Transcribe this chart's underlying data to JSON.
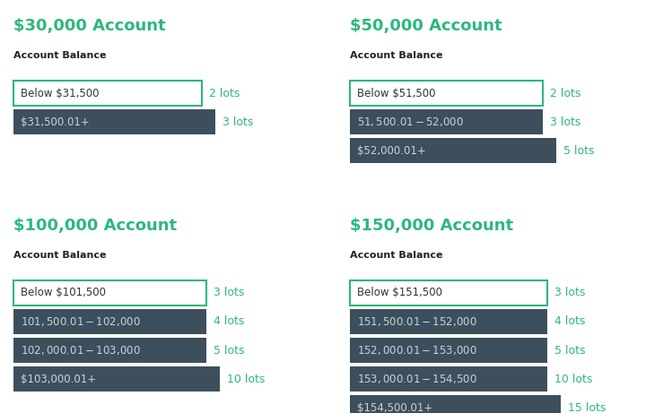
{
  "background_color": "#ffffff",
  "green_color": "#2db87d",
  "dark_box_color": "#3d4f5c",
  "light_box_border": "#2db87d",
  "panels": [
    {
      "title": "$30,000 Account",
      "col": 0,
      "row": 0,
      "rows": [
        {
          "label": "Below $31,500",
          "lots": "2 lots",
          "style": "light"
        },
        {
          "label": "$31,500.01+",
          "lots": "3 lots",
          "style": "dark"
        }
      ]
    },
    {
      "title": "$50,000 Account",
      "col": 1,
      "row": 0,
      "rows": [
        {
          "label": "Below $51,500",
          "lots": "2 lots",
          "style": "light"
        },
        {
          "label": "$51,500.01 - $52,000",
          "lots": "3 lots",
          "style": "dark"
        },
        {
          "label": "$52,000.01+",
          "lots": "5 lots",
          "style": "dark"
        }
      ]
    },
    {
      "title": "$100,000 Account",
      "col": 0,
      "row": 1,
      "rows": [
        {
          "label": "Below $101,500",
          "lots": "3 lots",
          "style": "light"
        },
        {
          "label": "$101,500.01- $102,000",
          "lots": "4 lots",
          "style": "dark"
        },
        {
          "label": "$102,000.01- $103,000",
          "lots": "5 lots",
          "style": "dark"
        },
        {
          "label": "$103,000.01+",
          "lots": "10 lots",
          "style": "dark"
        }
      ]
    },
    {
      "title": "$150,000 Account",
      "col": 1,
      "row": 1,
      "rows": [
        {
          "label": "Below $151,500",
          "lots": "3 lots",
          "style": "light"
        },
        {
          "label": "$151,500.01 - $152,000",
          "lots": "4 lots",
          "style": "dark"
        },
        {
          "label": "$152,000.01 - $153,000",
          "lots": "5 lots",
          "style": "dark"
        },
        {
          "label": "$153,000.01 - $154,500",
          "lots": "10 lots",
          "style": "dark"
        },
        {
          "label": "$154,500.01+",
          "lots": "15 lots",
          "style": "dark"
        }
      ]
    }
  ]
}
